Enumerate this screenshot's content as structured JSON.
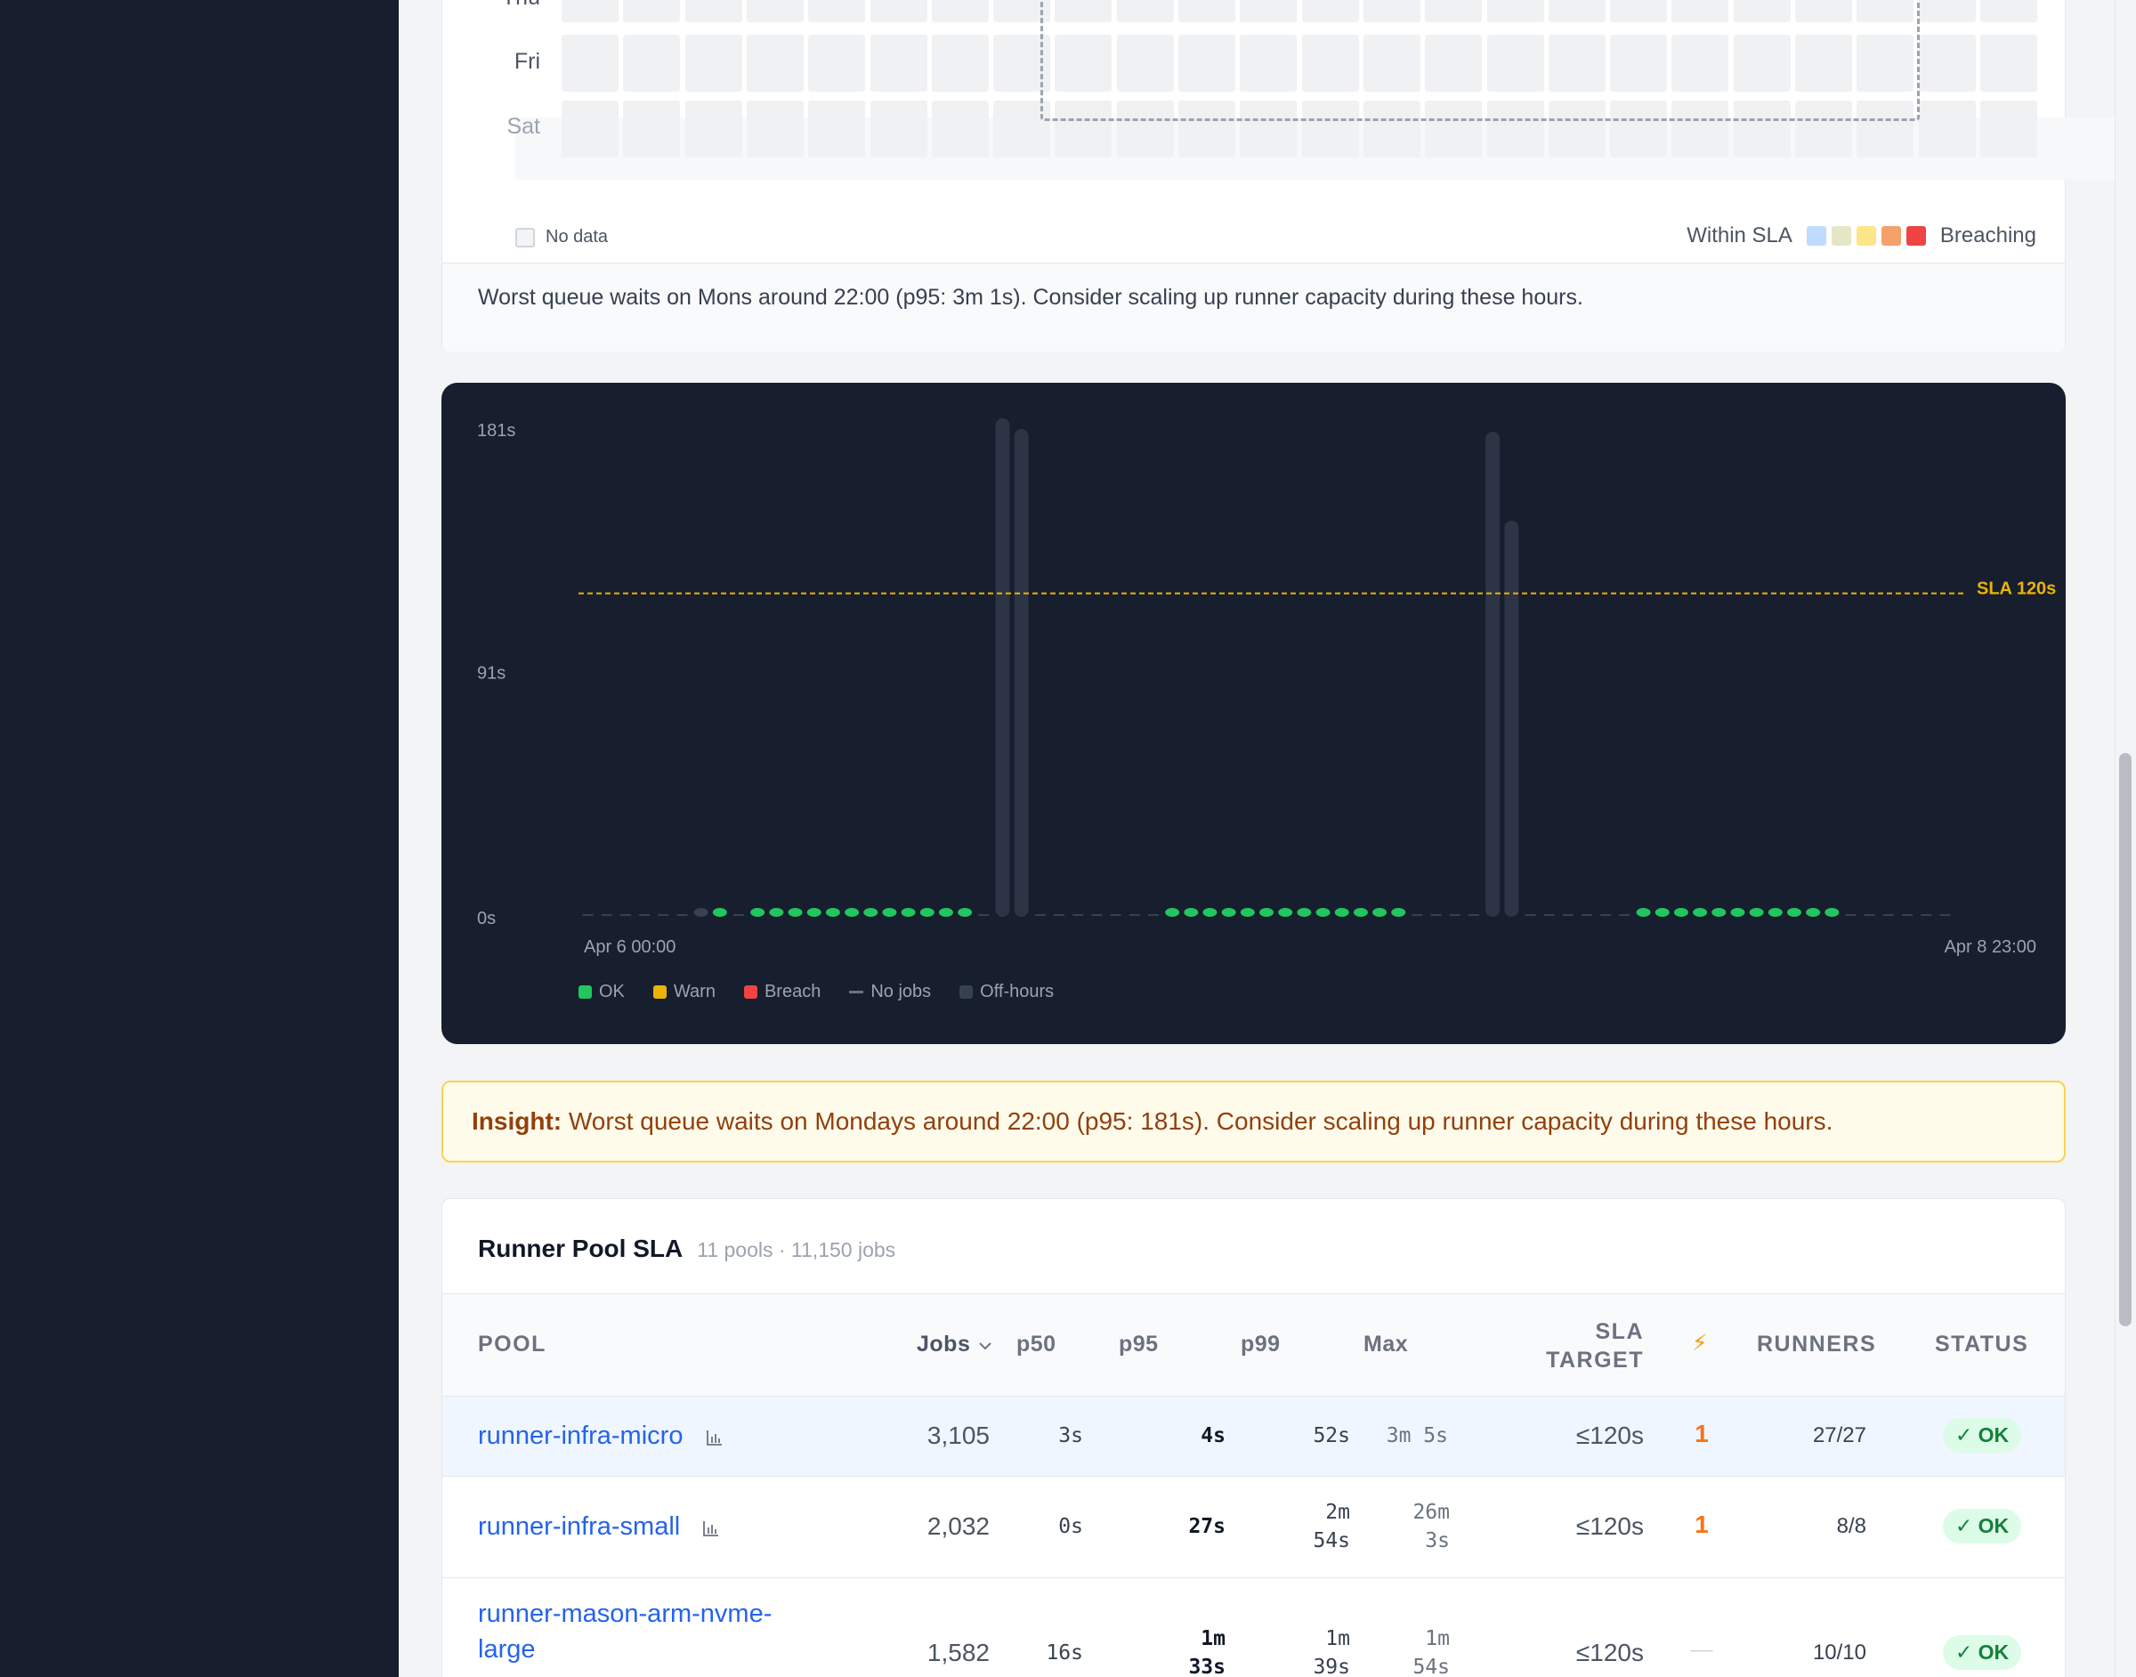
{
  "heatmap": {
    "days": [
      "Thu",
      "Fri",
      "Sat"
    ],
    "legend": {
      "no_data": "No data",
      "within": "Within SLA",
      "breaching": "Breaching",
      "scale_colors": [
        "#bfdbfe",
        "#e5e7c4",
        "#fde68a",
        "#f4a26a",
        "#ef4444"
      ]
    },
    "footer": "Worst queue waits on Mons around 22:00 (p95: 3m 1s). Consider scaling up runner capacity during these hours."
  },
  "chart_data": {
    "type": "bar",
    "y_ticks": [
      "181s",
      "91s",
      "0s"
    ],
    "ylim": [
      0,
      181
    ],
    "x_start_label": "Apr 6 00:00",
    "x_end_label": "Apr 8 23:00",
    "sla": {
      "value": 120,
      "label": "SLA 120s",
      "color": "#eab308"
    },
    "colors": {
      "ok": "#22c55e",
      "warn": "#eab308",
      "breach": "#ef4444",
      "nojobs": "#4b5563",
      "offhours": "#374151"
    },
    "values": [
      null,
      null,
      null,
      null,
      null,
      null,
      2,
      2,
      null,
      2,
      2,
      2,
      2,
      2,
      2,
      2,
      2,
      2,
      2,
      2,
      2,
      null,
      185,
      181,
      null,
      null,
      null,
      null,
      null,
      null,
      null,
      2,
      2,
      2,
      2,
      2,
      2,
      2,
      2,
      2,
      2,
      2,
      2,
      2,
      null,
      null,
      null,
      null,
      180,
      147,
      null,
      null,
      null,
      null,
      null,
      null,
      2,
      2,
      2,
      2,
      2,
      2,
      2,
      2,
      2,
      2,
      2,
      null,
      null,
      null,
      null,
      null,
      null
    ],
    "status": [
      "nojobs",
      "nojobs",
      "nojobs",
      "nojobs",
      "nojobs",
      "nojobs",
      "offhours",
      "ok",
      "nojobs",
      "ok",
      "ok",
      "ok",
      "ok",
      "ok",
      "ok",
      "ok",
      "ok",
      "ok",
      "ok",
      "ok",
      "ok",
      "nojobs",
      "offhours",
      "offhours",
      "nojobs",
      "nojobs",
      "nojobs",
      "nojobs",
      "nojobs",
      "nojobs",
      "nojobs",
      "ok",
      "ok",
      "ok",
      "ok",
      "ok",
      "ok",
      "ok",
      "ok",
      "ok",
      "ok",
      "ok",
      "ok",
      "ok",
      "nojobs",
      "nojobs",
      "nojobs",
      "nojobs",
      "offhours",
      "offhours",
      "nojobs",
      "nojobs",
      "nojobs",
      "nojobs",
      "nojobs",
      "nojobs",
      "ok",
      "ok",
      "ok",
      "ok",
      "ok",
      "ok",
      "ok",
      "ok",
      "ok",
      "ok",
      "ok",
      "nojobs",
      "nojobs",
      "nojobs",
      "nojobs",
      "nojobs",
      "nojobs"
    ],
    "legend": [
      {
        "key": "ok",
        "label": "OK"
      },
      {
        "key": "warn",
        "label": "Warn"
      },
      {
        "key": "breach",
        "label": "Breach"
      },
      {
        "key": "nojobs",
        "label": "No jobs"
      },
      {
        "key": "offhours",
        "label": "Off-hours"
      }
    ]
  },
  "insight": {
    "label": "Insight:",
    "text": " Worst queue waits on Mondays around 22:00 (p95: 181s). Consider scaling up runner capacity during these hours."
  },
  "sla_table": {
    "title": "Runner Pool SLA",
    "subtitle": "11 pools · 11,150 jobs",
    "columns": {
      "pool": "POOL",
      "jobs": "Jobs",
      "p50": "p50",
      "p95": "p95",
      "p99": "p99",
      "max": "Max",
      "sla_target_1": "SLA",
      "sla_target_2": "TARGET",
      "bolt": "⚡",
      "runners": "RUNNERS",
      "status": "STATUS"
    },
    "rows": [
      {
        "pool": "runner-infra-micro",
        "jobs": "3,105",
        "p50": "3s",
        "p95": "4s",
        "p99": "52s",
        "max": "3m 5s",
        "sla": "≤120s",
        "bolt": "1",
        "runners": "27/27",
        "status": "✓ OK"
      },
      {
        "pool": "runner-infra-small",
        "jobs": "2,032",
        "p50": "0s",
        "p95": "27s",
        "p99": "2m 54s",
        "max": "26m 3s",
        "sla": "≤120s",
        "bolt": "1",
        "runners": "8/8",
        "status": "✓ OK"
      },
      {
        "pool": "runner-mason-arm-nvme-large",
        "jobs": "1,582",
        "p50": "16s",
        "p95": "1m 33s",
        "p99": "1m 39s",
        "max": "1m 54s",
        "sla": "≤120s",
        "bolt": "—",
        "runners": "10/10",
        "status": "✓ OK"
      }
    ]
  }
}
